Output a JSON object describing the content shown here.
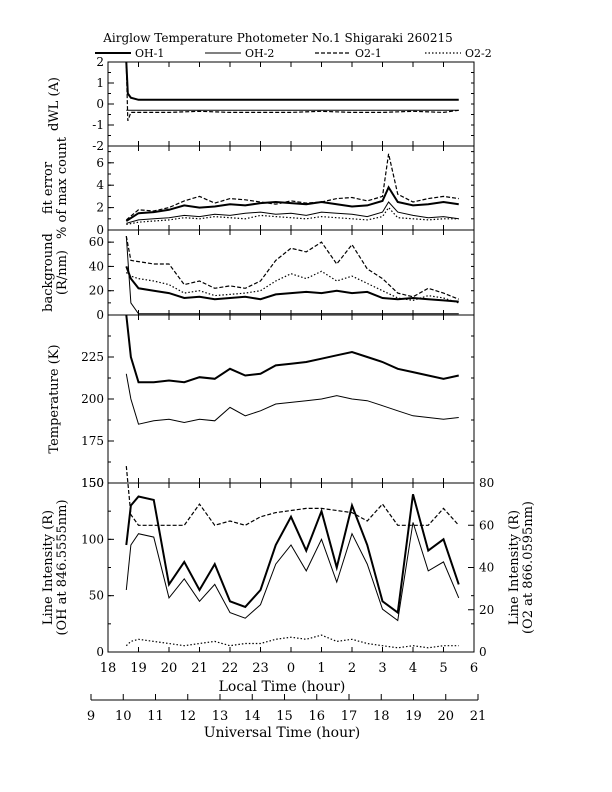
{
  "title": "Airglow Temperature Photometer No.1  Shigaraki  260215",
  "legend": [
    "OH-1",
    "OH-2",
    "O2-1",
    "O2-2"
  ],
  "chart_data": [
    {
      "type": "line",
      "panel": "dwl",
      "ylabel": "dWL (A)",
      "ylim": [
        -2,
        2
      ],
      "yticks": [
        -2,
        -1,
        0,
        1,
        2
      ],
      "x_local_hours": [
        18.6,
        18.65,
        18.75,
        19,
        20,
        21,
        22,
        23,
        24,
        25,
        26,
        27,
        28,
        29,
        29.5
      ],
      "series": [
        {
          "name": "OH-1",
          "style": "solid-thick",
          "values": [
            2,
            0.5,
            0.3,
            0.2,
            0.2,
            0.2,
            0.2,
            0.2,
            0.2,
            0.2,
            0.2,
            0.2,
            0.2,
            0.2,
            0.2
          ]
        },
        {
          "name": "OH-2",
          "style": "solid-thin",
          "values": [
            -0.3,
            -0.3,
            -0.3,
            -0.3,
            -0.3,
            -0.3,
            -0.3,
            -0.3,
            -0.3,
            -0.3,
            -0.3,
            -0.3,
            -0.3,
            -0.3,
            -0.3
          ]
        },
        {
          "name": "O2-1",
          "style": "dashed",
          "values": [
            1.9,
            -0.8,
            -0.4,
            -0.4,
            -0.4,
            -0.35,
            -0.4,
            -0.4,
            -0.4,
            -0.35,
            -0.4,
            -0.4,
            -0.35,
            -0.4,
            -0.3
          ]
        }
      ]
    },
    {
      "type": "line",
      "panel": "fit-error",
      "ylabel": "fit error",
      "ylabel2": "% of max count",
      "ylim": [
        0,
        7.5
      ],
      "yticks": [
        0,
        2,
        4,
        6
      ],
      "x_local_hours": [
        18.6,
        19,
        19.5,
        20,
        20.5,
        21,
        21.5,
        22,
        22.5,
        23,
        23.5,
        24,
        24.5,
        25,
        25.5,
        26,
        26.5,
        27,
        27.2,
        27.5,
        28,
        28.5,
        29,
        29.5
      ],
      "series": [
        {
          "name": "OH-1",
          "style": "solid-thick",
          "values": [
            0.8,
            1.5,
            1.6,
            1.8,
            2.2,
            2.0,
            2.1,
            2.3,
            2.2,
            2.4,
            2.5,
            2.4,
            2.3,
            2.5,
            2.3,
            2.1,
            2.2,
            2.6,
            3.8,
            2.5,
            2.2,
            2.3,
            2.5,
            2.3
          ]
        },
        {
          "name": "OH-2",
          "style": "solid-thin",
          "values": [
            0.6,
            0.9,
            1.0,
            1.1,
            1.3,
            1.2,
            1.4,
            1.3,
            1.5,
            1.6,
            1.4,
            1.5,
            1.3,
            1.6,
            1.5,
            1.4,
            1.2,
            1.6,
            2.5,
            1.6,
            1.3,
            1.1,
            1.2,
            1.0
          ]
        },
        {
          "name": "O2-1",
          "style": "dashed",
          "values": [
            0.9,
            1.8,
            1.7,
            2.0,
            2.6,
            3.0,
            2.4,
            2.8,
            2.7,
            2.5,
            2.3,
            2.6,
            2.4,
            2.5,
            2.8,
            2.9,
            2.6,
            3.0,
            6.8,
            3.2,
            2.5,
            2.8,
            3.0,
            2.8
          ]
        },
        {
          "name": "O2-2",
          "style": "dotted",
          "values": [
            0.5,
            0.7,
            0.8,
            0.9,
            1.1,
            1.0,
            1.2,
            1.1,
            1.0,
            1.3,
            1.2,
            1.1,
            1.0,
            1.2,
            1.1,
            1.0,
            0.9,
            1.2,
            2.0,
            1.1,
            1.0,
            0.9,
            1.0,
            1.0
          ]
        }
      ]
    },
    {
      "type": "line",
      "panel": "background",
      "ylabel": "background",
      "ylabel2": "(R/nm)",
      "ylim": [
        0,
        70
      ],
      "yticks": [
        0,
        20,
        40,
        60
      ],
      "x_local_hours": [
        18.6,
        18.75,
        19,
        19.5,
        20,
        20.5,
        21,
        21.5,
        22,
        22.5,
        23,
        23.5,
        24,
        24.5,
        25,
        25.5,
        26,
        26.5,
        27,
        27.5,
        28,
        28.5,
        29,
        29.5
      ],
      "series": [
        {
          "name": "OH-1",
          "style": "solid-thick",
          "values": [
            40,
            30,
            22,
            20,
            18,
            14,
            15,
            13,
            14,
            15,
            13,
            17,
            18,
            19,
            18,
            20,
            18,
            19,
            14,
            13,
            14,
            13,
            12,
            11
          ]
        },
        {
          "name": "OH-2",
          "style": "solid-thin",
          "values": [
            65,
            10,
            1,
            1,
            1,
            1,
            1,
            1,
            1,
            1,
            1,
            1,
            1,
            1,
            1,
            1,
            1,
            1,
            1,
            1,
            1,
            1,
            1,
            1
          ]
        },
        {
          "name": "O2-1",
          "style": "dashed",
          "values": [
            65,
            45,
            44,
            42,
            42,
            25,
            28,
            22,
            24,
            22,
            28,
            45,
            55,
            52,
            60,
            42,
            58,
            38,
            30,
            18,
            15,
            22,
            18,
            13
          ]
        },
        {
          "name": "O2-2",
          "style": "dotted",
          "values": [
            35,
            32,
            30,
            28,
            25,
            18,
            20,
            16,
            17,
            18,
            20,
            28,
            34,
            30,
            36,
            28,
            32,
            26,
            20,
            14,
            12,
            16,
            14,
            10
          ]
        }
      ]
    },
    {
      "type": "line",
      "panel": "temperature",
      "ylabel": "Temperature (K)",
      "ylim": [
        150,
        250
      ],
      "yticks": [
        150,
        175,
        200,
        225
      ],
      "x_local_hours": [
        18.6,
        18.75,
        19,
        19.5,
        20,
        20.5,
        21,
        21.5,
        22,
        22.5,
        23,
        23.5,
        24,
        24.5,
        25,
        25.5,
        26,
        26.5,
        27,
        27.5,
        28,
        28.5,
        29,
        29.5
      ],
      "series": [
        {
          "name": "OH-1",
          "style": "solid-thick",
          "values": [
            250,
            225,
            210,
            210,
            211,
            210,
            213,
            212,
            218,
            214,
            215,
            220,
            221,
            222,
            224,
            226,
            228,
            225,
            222,
            218,
            216,
            214,
            212,
            214
          ]
        },
        {
          "name": "OH-2",
          "style": "solid-thin",
          "values": [
            215,
            200,
            185,
            187,
            188,
            186,
            188,
            187,
            195,
            190,
            193,
            197,
            198,
            199,
            200,
            202,
            200,
            199,
            196,
            193,
            190,
            189,
            188,
            189
          ]
        }
      ]
    },
    {
      "type": "line",
      "panel": "intensity",
      "ylabel": "Line Intensity (R)",
      "ylabel2": "(OH at 846.5555nm)",
      "ylabel_right": "Line Intensity (R)",
      "ylabel_right2": "(O2 at 866.0595nm)",
      "ylim": [
        0,
        150
      ],
      "yticks": [
        0,
        50,
        100,
        150
      ],
      "ylim_right": [
        0,
        80
      ],
      "yticks_right": [
        0,
        20,
        40,
        60,
        80
      ],
      "xlabel": "Local Time (hour)",
      "xticks_local": [
        "18",
        "19",
        "20",
        "21",
        "22",
        "23",
        "0",
        "1",
        "2",
        "3",
        "4",
        "5",
        "6"
      ],
      "xlabel2": "Universal Time (hour)",
      "xticks_ut": [
        "9",
        "10",
        "11",
        "12",
        "13",
        "14",
        "15",
        "16",
        "17",
        "18",
        "19",
        "20",
        "21"
      ],
      "x_local_hours": [
        18.6,
        18.75,
        19,
        19.5,
        20,
        20.5,
        21,
        21.5,
        22,
        22.5,
        23,
        23.5,
        24,
        24.5,
        25,
        25.5,
        26,
        26.5,
        27,
        27.5,
        28,
        28.5,
        29,
        29.5
      ],
      "series": [
        {
          "name": "OH-1",
          "style": "solid-thick",
          "values": [
            95,
            130,
            138,
            135,
            60,
            80,
            55,
            78,
            45,
            40,
            55,
            95,
            120,
            90,
            125,
            75,
            130,
            95,
            45,
            35,
            140,
            90,
            100,
            60
          ]
        },
        {
          "name": "OH-2",
          "style": "solid-thin",
          "values": [
            55,
            95,
            105,
            102,
            48,
            65,
            45,
            60,
            35,
            30,
            42,
            78,
            95,
            72,
            100,
            62,
            105,
            78,
            38,
            28,
            115,
            72,
            80,
            48
          ]
        },
        {
          "name": "O2-1",
          "style": "dashed",
          "axis": "right",
          "values": [
            88,
            65,
            60,
            60,
            60,
            60,
            70,
            60,
            62,
            60,
            64,
            66,
            67,
            68,
            68,
            67,
            66,
            62,
            70,
            60,
            60,
            60,
            68,
            60
          ]
        },
        {
          "name": "O2-2",
          "style": "dotted",
          "axis": "right",
          "values": [
            3,
            5,
            6,
            5,
            4,
            3,
            4,
            5,
            3,
            4,
            4,
            6,
            7,
            6,
            8,
            5,
            6,
            4,
            3,
            2,
            3,
            2,
            3,
            3
          ]
        }
      ]
    }
  ]
}
